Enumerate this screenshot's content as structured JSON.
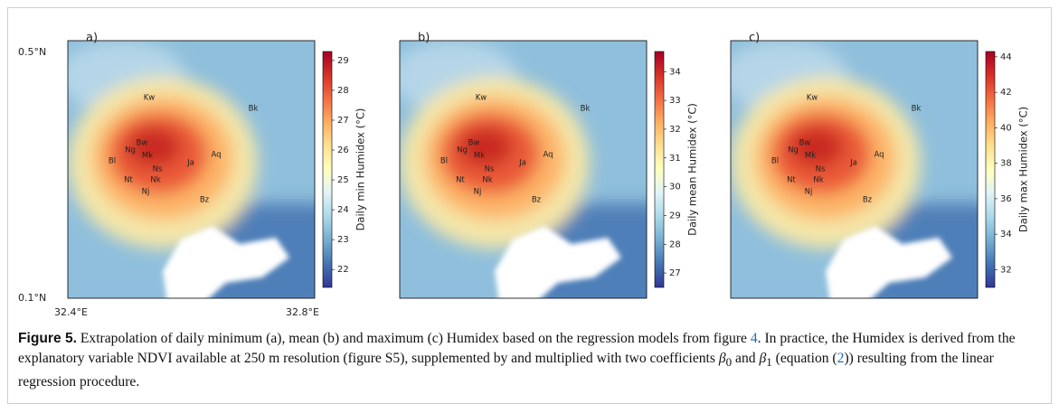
{
  "axes": {
    "lat_top": "0.5°N",
    "lat_bottom": "0.1°N",
    "lon_left": "32.4°E",
    "lon_right": "32.8°E"
  },
  "places": [
    "Kw",
    "Bk",
    "Bw",
    "Ng",
    "Mk",
    "Aq",
    "Bl",
    "Ja",
    "Ns",
    "Nt",
    "Nk",
    "Nj",
    "Bz"
  ],
  "panels": [
    {
      "label": "a)",
      "colorbar_label": "Daily min Humidex (°C)",
      "clim": [
        21.4,
        29.3
      ],
      "ticks": [
        22,
        23,
        24,
        25,
        26,
        27,
        28,
        29
      ]
    },
    {
      "label": "b)",
      "colorbar_label": "Daily mean Humidex (°C)",
      "clim": [
        26.5,
        34.7
      ],
      "ticks": [
        27,
        28,
        29,
        30,
        31,
        32,
        33,
        34
      ]
    },
    {
      "label": "c)",
      "colorbar_label": "Daily max Humidex (°C)",
      "clim": [
        31,
        44.3
      ],
      "ticks": [
        32,
        34,
        36,
        38,
        40,
        42,
        44
      ]
    }
  ],
  "caption": {
    "figure": "Figure 5.",
    "parts": [
      " Extrapolation of daily minimum (a), mean (b) and maximum (c) Humidex based on the regression models from figure ",
      "4",
      ". In practice, the Humidex is derived from the explanatory variable NDVI available at 250 m resolution (figure S5), supplemented by and multiplied with two coefficients ",
      "β",
      "0",
      " and ",
      "β",
      "1",
      " (equation (",
      "2",
      ")) resulting from the linear regression procedure."
    ]
  }
}
